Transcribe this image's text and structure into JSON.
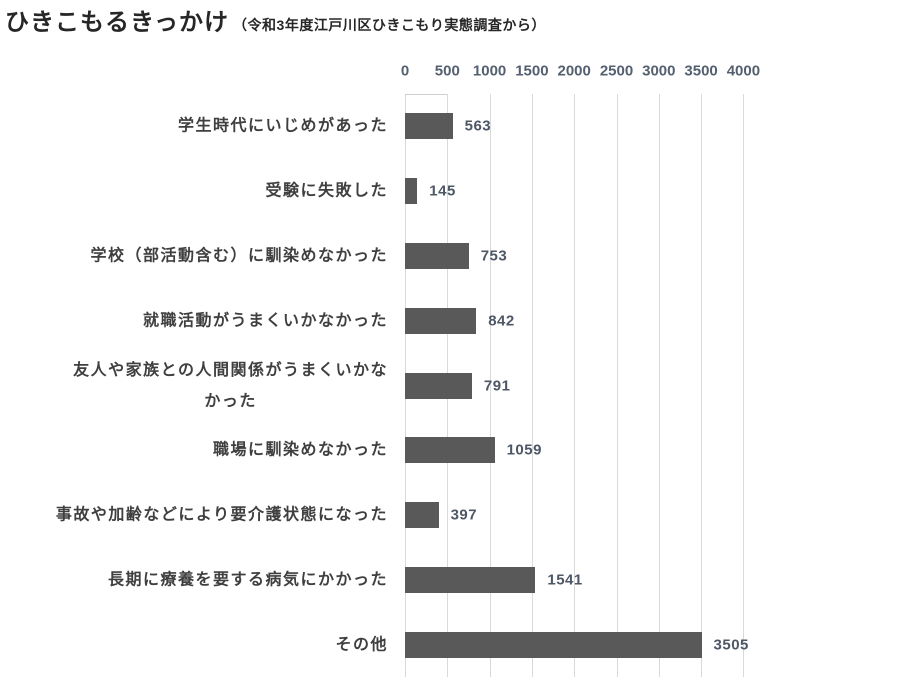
{
  "header": {
    "title": "ひきこもるきっかけ",
    "subtitle": "（令和3年度江戸川区ひきこもり実態調査から）"
  },
  "chart_data": {
    "type": "bar",
    "orientation": "horizontal",
    "title": "ひきこもるきっかけ",
    "subtitle": "（令和3年度江戸川区ひきこもり実態調査から）",
    "categories": [
      "学生時代にいじめがあった",
      "受験に失敗した",
      "学校（部活動含む）に馴染めなかった",
      "就職活動がうまくいかなかった",
      "友人や家族との人間関係がうまくいかな\nかった",
      "職場に馴染めなかった",
      "事故や加齢などにより要介護状態になった",
      "長期に療養を要する病気にかかった",
      "その他"
    ],
    "values": [
      563,
      145,
      753,
      842,
      791,
      1059,
      397,
      1541,
      3505
    ],
    "xlim": [
      0,
      4000
    ],
    "xticks": [
      0,
      500,
      1000,
      1500,
      2000,
      2500,
      3000,
      3500,
      4000
    ],
    "grid": true,
    "legend": false,
    "data_labels": true,
    "colors": {
      "bar": "#595959",
      "gridline": "#d9d9d9",
      "tick_label": "#546070",
      "value_label": "#4d5766",
      "category_label": "#3f3f3f",
      "title": "#262626"
    }
  }
}
